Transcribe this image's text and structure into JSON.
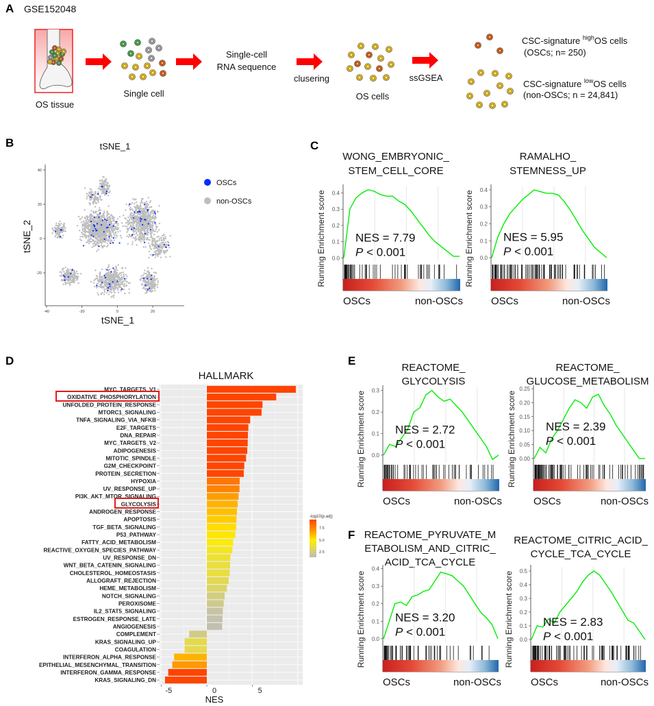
{
  "panel_a": {
    "label": "A",
    "dataset": "GSE152048",
    "tissue_label": "OS tissue",
    "single_cell_label": "Single cell",
    "scrna_line1": "Single-cell",
    "scrna_line2": "RNA sequence",
    "clustering_label": "clusering",
    "os_cells_label": "OS cells",
    "ssgsea_label": "ssGSEA",
    "high_prefix": "CSC-signature ",
    "high_sup": "high",
    "high_suffix": "OS cells",
    "high_count": "(OSCs; n= 250)",
    "low_prefix": "CSC-signature ",
    "low_sup": "low",
    "low_suffix": "OS cells",
    "low_count": "(non-OSCs; n = 24,841)",
    "colors": {
      "arrow": "#ff0000",
      "green": "#4caf50",
      "gray": "#b0b0b0",
      "yellow": "#f3c623",
      "orange": "#e2661c"
    }
  },
  "chart_data": [
    {
      "panel": "B",
      "type": "scatter",
      "title": "tSNE_1",
      "xlabel": "tSNE_1",
      "ylabel": "tSNE_2",
      "x_ticks": [
        "-40",
        "-20",
        "0",
        "20"
      ],
      "y_ticks": [
        "40",
        "20",
        "0",
        "-20"
      ],
      "xlim": [
        -40,
        35
      ],
      "ylim": [
        -37,
        43
      ],
      "legend": [
        {
          "name": "OSCs",
          "color": "#0a2bff"
        },
        {
          "name": "non-OSCs",
          "color": "#bdbdbd"
        }
      ],
      "legend_position": "right"
    },
    {
      "panel": "C",
      "type": "line",
      "title": "WONG_EMBRYONIC_ STEM_CELL_CORE",
      "title_lines": [
        "WONG_EMBRYONIC_",
        "STEM_CELL_CORE"
      ],
      "ylabel": "Running Enrichment score",
      "y_ticks": [
        "0.0",
        "0.1",
        "0.2",
        "0.3",
        "0.4"
      ],
      "ylim": [
        -0.02,
        0.44
      ],
      "es_curve": [
        0,
        0.3,
        0.37,
        0.4,
        0.42,
        0.41,
        0.39,
        0.38,
        0.38,
        0.35,
        0.33,
        0.29,
        0.24,
        0.19,
        0.14,
        0.1,
        0.07,
        0.04,
        0.01,
        0.01
      ],
      "nes": "NES = 7.79",
      "p_label": "P",
      "p_value": " < 0.001",
      "x_left": "OSCs",
      "x_right": "non-OSCs",
      "line_color": "#00ee00"
    },
    {
      "panel": "C",
      "type": "line",
      "title": "RAMALHO_ STEMNESS_UP",
      "title_lines": [
        "RAMALHO_",
        "STEMNESS_UP"
      ],
      "ylabel": "Running Enrichment score",
      "y_ticks": [
        "0.0",
        "0.1",
        "0.2",
        "0.3",
        "0.4"
      ],
      "ylim": [
        -0.02,
        0.42
      ],
      "es_curve": [
        0,
        0.12,
        0.2,
        0.26,
        0.3,
        0.34,
        0.37,
        0.4,
        0.39,
        0.38,
        0.38,
        0.37,
        0.33,
        0.28,
        0.22,
        0.16,
        0.11,
        0.06,
        0.03,
        0.0
      ],
      "nes": "NES = 5.95",
      "p_label": "P",
      "p_value": " < 0.001",
      "x_left": "OSCs",
      "x_right": "non-OSCs",
      "line_color": "#00ee00"
    },
    {
      "panel": "D",
      "type": "bar",
      "title": "HALLMARK",
      "xlabel": "NES",
      "x_ticks": [
        "-5",
        "0",
        "5"
      ],
      "xlim": [
        -5.5,
        10
      ],
      "legend_title": "-log10(p.adj)",
      "legend_ticks": [
        "7.5",
        "5.0",
        "2.5"
      ],
      "legend_position": "right",
      "highlighted": [
        "OXIDATIVE_PHOSPHORYLATION",
        "GLYCOLYSIS"
      ],
      "categories": [
        "MYC_TARGETS_V1",
        "OXIDATIVE_PHOSPHORYLATION",
        "UNFOLDED_PROTEIN_RESPONSE",
        "MTORC1_SIGNALING",
        "TNFA_SIGNALING_VIA_NFKB",
        "E2F_TARGETS",
        "DNA_REPAIR",
        "MYC_TARGETS_V2",
        "ADIPOGENESIS",
        "MITOTIC_SPINDLE",
        "G2M_CHECKPOINT",
        "PROTEIN_SECRETION",
        "HYPOXIA",
        "UV_RESPONSE_UP",
        "PI3K_AKT_MTOR_SIGNALING",
        "GLYCOLYSIS",
        "ANDROGEN_RESPONSE",
        "APOPTOSIS",
        "TGF_BETA_SIGNALING",
        "P53_PATHWAY",
        "FATTY_ACID_METABOLISM",
        "REACTIVE_OXYGEN_SPECIES_PATHWAY",
        "UV_RESPONSE_DN",
        "WNT_BETA_CATENIN_SIGNALING",
        "CHOLESTEROL_HOMEOSTASIS",
        "ALLOGRAFT_REJECTION",
        "HEME_METABOLISM",
        "NOTCH_SIGNALING",
        "PEROXISOME",
        "IL2_STAT5_SIGNALING",
        "ESTROGEN_RESPONSE_LATE",
        "ANGIOGENESIS",
        "COMPLEMENT",
        "KRAS_SIGNALING_UP",
        "COAGULATION",
        "INTERFERON_ALPHA_RESPONSE",
        "EPITHELIAL_MESENCHYMAL_TRANSITION",
        "INTERFERON_GAMMA_RESPONSE",
        "KRAS_SIGNALING_DN"
      ],
      "values": [
        9.75,
        7.6,
        6.1,
        6.0,
        4.75,
        4.55,
        4.5,
        4.48,
        4.43,
        4.3,
        4.1,
        4.05,
        3.6,
        3.58,
        3.48,
        3.38,
        3.3,
        3.25,
        3.22,
        3.12,
        2.88,
        2.8,
        2.58,
        2.55,
        2.5,
        2.4,
        2.2,
        1.95,
        1.85,
        1.75,
        1.72,
        1.68,
        -1.93,
        -2.43,
        -2.43,
        -3.58,
        -3.78,
        -4.23,
        -4.58
      ],
      "neg_log10_padj": [
        8.8,
        8.8,
        8.8,
        8.8,
        8.7,
        8.7,
        8.7,
        8.7,
        8.7,
        8.6,
        8.6,
        8.6,
        7.6,
        7.4,
        6.9,
        6.4,
        6.1,
        5.8,
        5.4,
        5.2,
        4.8,
        4.5,
        4.2,
        4.0,
        4.0,
        3.7,
        3.4,
        3.0,
        2.8,
        2.4,
        2.3,
        2.2,
        2.9,
        3.8,
        3.8,
        6.4,
        7.0,
        8.6,
        8.8
      ]
    },
    {
      "panel": "E",
      "type": "line",
      "title": "REACTOME_ GLYCOLYSIS",
      "title_lines": [
        "REACTOME_",
        "GLYCOLYSIS"
      ],
      "ylabel": "Running Enrichment score",
      "y_ticks": [
        "0.0",
        "0.1",
        "0.2",
        "0.3"
      ],
      "ylim": [
        -0.035,
        0.315
      ],
      "es_curve": [
        0,
        0.05,
        0.04,
        0.08,
        0.12,
        0.2,
        0.22,
        0.28,
        0.3,
        0.27,
        0.25,
        0.26,
        0.23,
        0.2,
        0.16,
        0.12,
        0.08,
        0.04,
        -0.02,
        0.0
      ],
      "nes": "NES = 2.72",
      "p_label": "P",
      "p_value": " < 0.001",
      "x_left": "OSCs",
      "x_right": "non-OSCs",
      "line_color": "#00ee00"
    },
    {
      "panel": "E",
      "type": "line",
      "title": "REACTOME_ GLUCOSE_METABOLISM",
      "title_lines": [
        "REACTOME_",
        "GLUCOSE_METABOLISM"
      ],
      "ylabel": "Running Enrichment score",
      "y_ticks": [
        "0.00",
        "0.05",
        "0.10",
        "0.15",
        "0.20",
        "0.25"
      ],
      "ylim": [
        -0.015,
        0.255
      ],
      "es_curve": [
        0,
        0.04,
        0.02,
        0.07,
        0.1,
        0.14,
        0.18,
        0.21,
        0.2,
        0.18,
        0.22,
        0.23,
        0.19,
        0.16,
        0.12,
        0.09,
        0.06,
        0.03,
        0.0,
        0.0
      ],
      "nes": "NES = 2.39",
      "p_label": "P",
      "p_value": " < 0.001",
      "x_left": "OSCs",
      "x_right": "non-OSCs",
      "line_color": "#00ee00"
    },
    {
      "panel": "F",
      "type": "line",
      "title": "REACTOME_PYRUVATE_M ETABOLISM_AND_CITRIC_ ACID_TCA_CYCLE",
      "title_lines": [
        "REACTOME_PYRUVATE_M",
        "ETABOLISM_AND_CITRIC_",
        "ACID_TCA_CYCLE"
      ],
      "ylabel": "Running Enrichment score",
      "y_ticks": [
        "0.0",
        "0.1",
        "0.2",
        "0.3",
        "0.4"
      ],
      "ylim": [
        -0.02,
        0.41
      ],
      "es_curve": [
        0,
        0.1,
        0.2,
        0.21,
        0.19,
        0.24,
        0.25,
        0.27,
        0.28,
        0.33,
        0.38,
        0.37,
        0.36,
        0.33,
        0.3,
        0.25,
        0.2,
        0.15,
        0.12,
        0.08,
        0.0
      ],
      "nes": "NES = 3.20",
      "p_label": "P",
      "p_value": " < 0.001",
      "x_left": "OSCs",
      "x_right": "non-OSCs",
      "line_color": "#00ee00"
    },
    {
      "panel": "F",
      "type": "line",
      "title": "REACTOME_CITRIC_ACID_ CYCLE_TCA_CYCLE",
      "title_lines": [
        "REACTOME_CITRIC_ACID_",
        "CYCLE_TCA_CYCLE"
      ],
      "ylabel": "Running Enrichment score",
      "y_ticks": [
        "0.0",
        "0.1",
        "0.2",
        "0.3",
        "0.4",
        "0.5"
      ],
      "ylim": [
        -0.02,
        0.53
      ],
      "es_curve": [
        0,
        0.1,
        0.09,
        0.15,
        0.12,
        0.2,
        0.25,
        0.3,
        0.35,
        0.42,
        0.47,
        0.5,
        0.47,
        0.41,
        0.35,
        0.28,
        0.21,
        0.14,
        0.12,
        0.06,
        0.0
      ],
      "nes": "NES = 2.83",
      "p_label": "P",
      "p_value": " < 0.001",
      "x_left": "OSCs",
      "x_right": "non-OSCs",
      "line_color": "#00ee00"
    }
  ],
  "panel_labels": {
    "b": "B",
    "c": "C",
    "d": "D",
    "e": "E",
    "f": "F"
  }
}
